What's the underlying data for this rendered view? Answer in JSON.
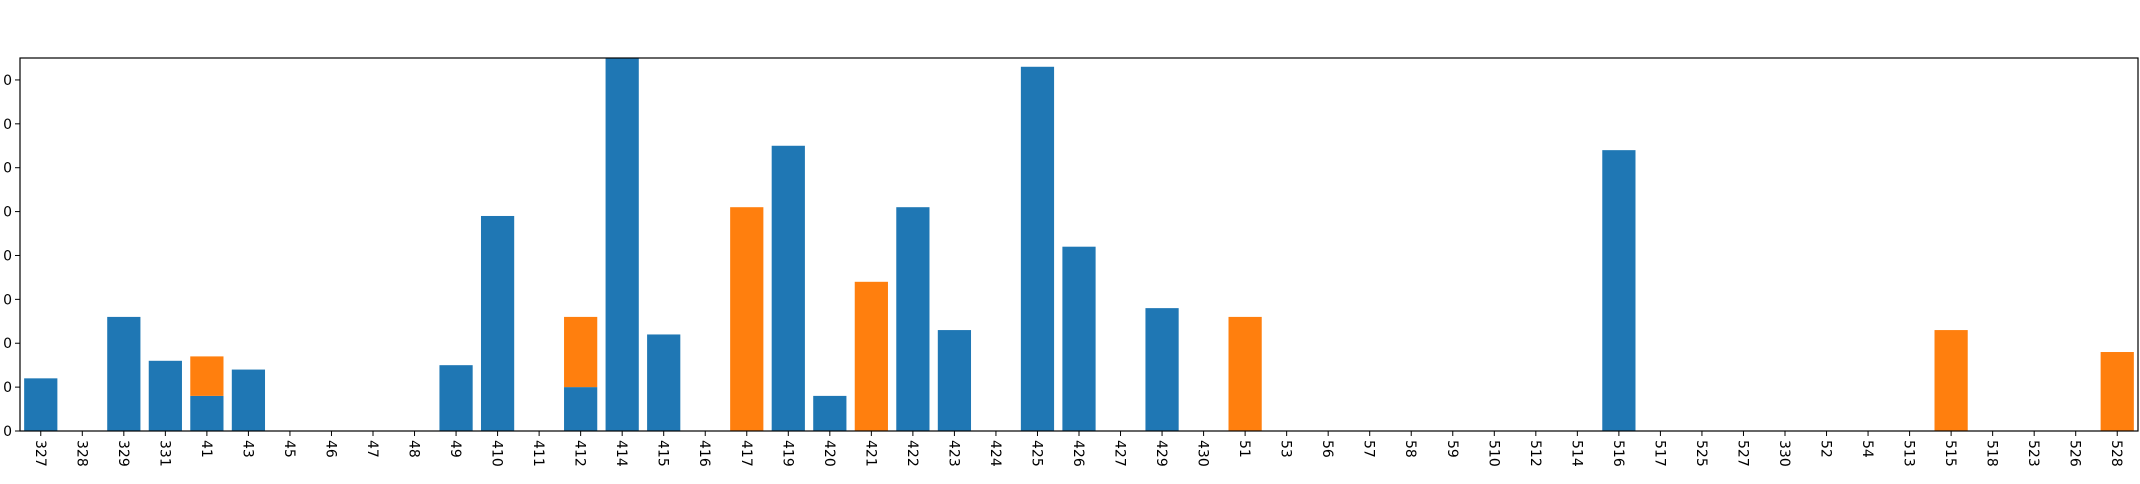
{
  "chart_data": {
    "type": "bar",
    "stacked": true,
    "grid": false,
    "legend": "none",
    "title": "",
    "xlabel": "",
    "ylabel": "",
    "ylim": [
      0,
      85
    ],
    "yticks": [
      0,
      10,
      20,
      30,
      40,
      50,
      60,
      70,
      80
    ],
    "ytick_labels": [
      "0",
      "0",
      "0",
      "0",
      "0",
      "0",
      "0",
      "0",
      "0"
    ],
    "categories": [
      "327",
      "328",
      "329",
      "331",
      "41",
      "43",
      "45",
      "46",
      "47",
      "48",
      "49",
      "410",
      "411",
      "412",
      "414",
      "415",
      "416",
      "417",
      "419",
      "420",
      "421",
      "422",
      "423",
      "424",
      "425",
      "426",
      "427",
      "429",
      "430",
      "51",
      "53",
      "56",
      "57",
      "58",
      "59",
      "510",
      "512",
      "514",
      "516",
      "517",
      "525",
      "527",
      "330",
      "52",
      "54",
      "513",
      "515",
      "518",
      "523",
      "526",
      "528"
    ],
    "series": [
      {
        "color": "#1f77b4",
        "values": [
          12,
          0,
          26,
          16,
          8,
          14,
          0,
          0,
          0,
          0,
          15,
          49,
          0,
          10,
          85,
          22,
          0,
          0,
          65,
          8,
          0,
          51,
          23,
          0,
          83,
          42,
          0,
          28,
          0,
          0,
          0,
          0,
          0,
          0,
          0,
          0,
          0,
          0,
          64,
          0,
          0,
          0,
          0,
          0,
          0,
          0,
          0,
          0,
          0,
          0,
          0
        ]
      },
      {
        "color": "#ff7f0e",
        "values": [
          0,
          0,
          0,
          0,
          9,
          0,
          0,
          0,
          0,
          0,
          0,
          0,
          0,
          16,
          0,
          0,
          0,
          51,
          0,
          0,
          34,
          0,
          0,
          0,
          0,
          0,
          0,
          0,
          0,
          26,
          0,
          0,
          0,
          0,
          0,
          0,
          0,
          0,
          0,
          0,
          0,
          0,
          0,
          0,
          0,
          0,
          23,
          0,
          0,
          0,
          18
        ]
      }
    ]
  }
}
